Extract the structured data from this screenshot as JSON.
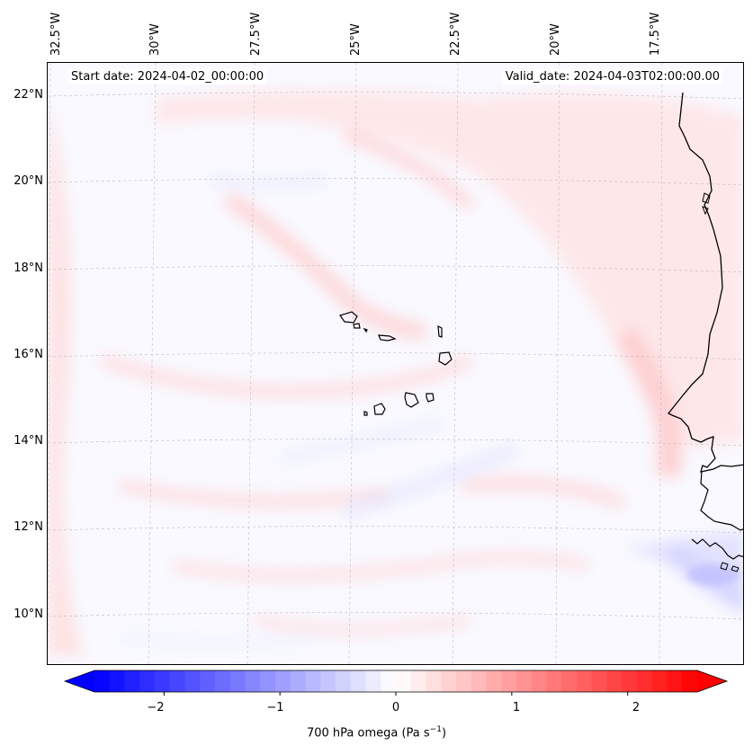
{
  "map": {
    "start_date": "Start date: 2024-04-02_00:00:00",
    "valid_date": "Valid_date: 2024-04-03T02:00:00.00",
    "lon_labels": [
      "32.5°W",
      "30°W",
      "27.5°W",
      "25°W",
      "22.5°W",
      "20°W",
      "17.5°W"
    ],
    "lat_labels": [
      "22°N",
      "20°N",
      "18°N",
      "16°N",
      "14°N",
      "12°N",
      "10°N"
    ],
    "colors": {
      "coast": "#000000",
      "grid": "#b0b0b0",
      "positive": "#ff0000",
      "negative": "#0000ff",
      "neutral": "#ffffff"
    }
  },
  "colorbar": {
    "title_main": "700 hPa omega (Pa s",
    "title_exp": "−1",
    "title_close": ")",
    "tick_labels": [
      "−2",
      "−1",
      "0",
      "1",
      "2"
    ],
    "range": [
      -2.6,
      2.6
    ],
    "ticks": [
      -2,
      -1,
      0,
      1,
      2
    ],
    "extend": "both"
  },
  "features": {
    "regions": [
      "Cape Verde Islands",
      "West African coast"
    ]
  }
}
